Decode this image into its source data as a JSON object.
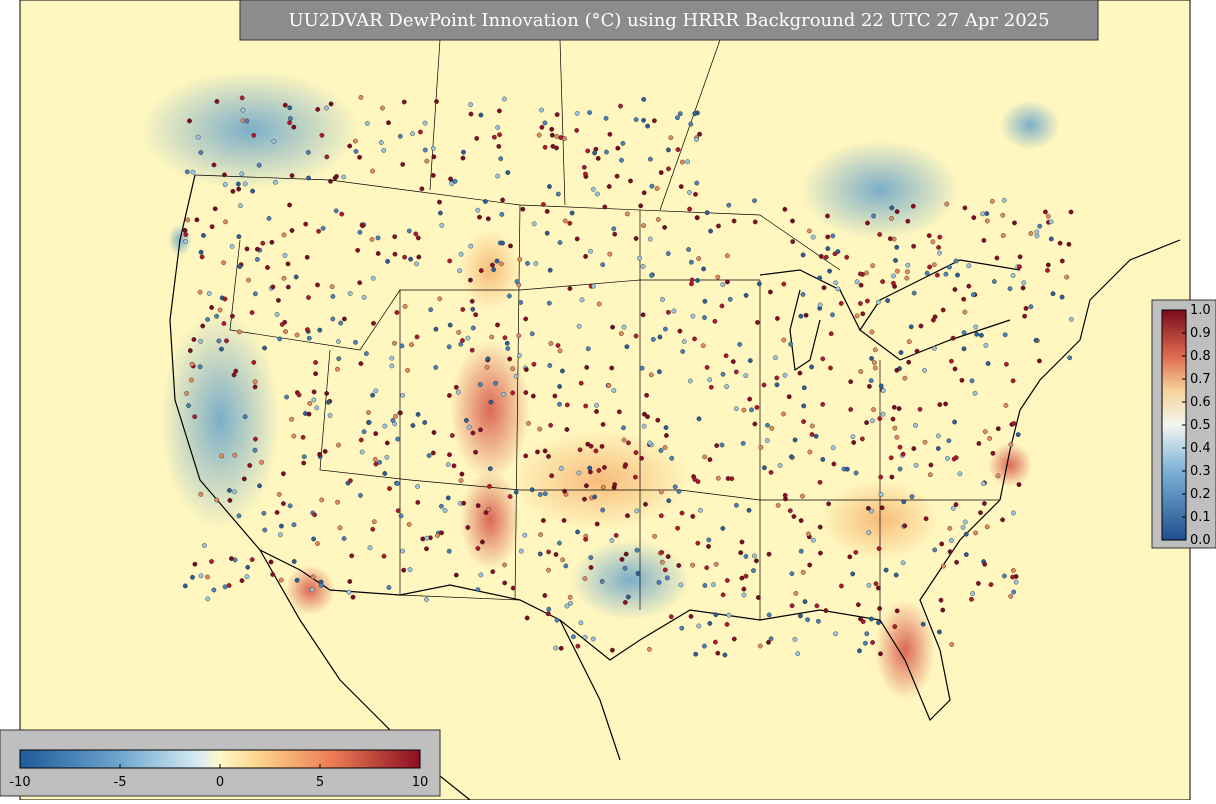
{
  "title": "UU2DVAR DewPoint Innovation (°C) using HRRR Background 22 UTC 27 Apr 2025",
  "colorbar_horizontal": {
    "lim": [
      -10,
      10
    ],
    "ticks": [
      -10,
      -5,
      0,
      5,
      10
    ]
  },
  "colorbar_vertical": {
    "lim": [
      0,
      1
    ],
    "ticks": [
      {
        "value": 0,
        "label": "0.0"
      },
      0.1,
      0.2,
      0.3,
      0.4,
      0.5,
      0.6,
      0.7,
      0.8,
      0.9,
      {
        "value": 1,
        "label": "1.0"
      }
    ]
  }
}
